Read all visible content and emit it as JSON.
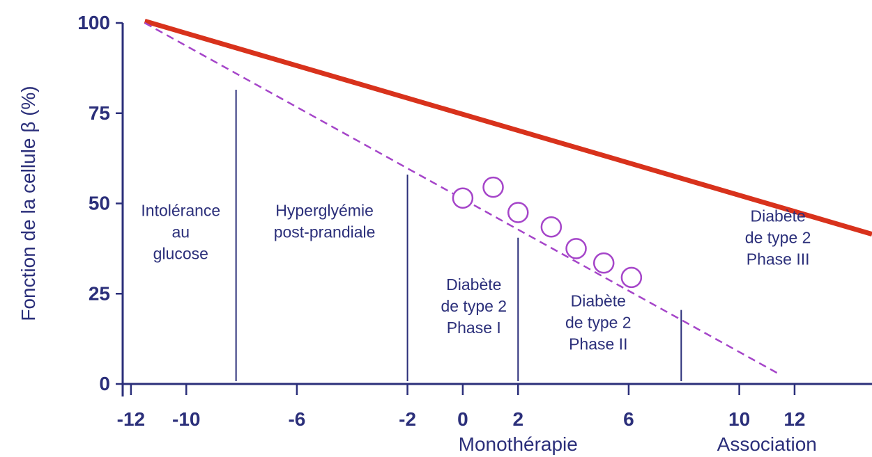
{
  "chart_data": {
    "type": "line",
    "ylabel": "Fonction de la cellule β (%)",
    "xlim": [
      -12.3,
      14.8
    ],
    "ylim": [
      0,
      100
    ],
    "x_ticks": [
      {
        "value": -12,
        "label": "-12"
      },
      {
        "value": -10,
        "label": "-10"
      },
      {
        "value": -6,
        "label": "-6"
      },
      {
        "value": -2,
        "label": "-2"
      },
      {
        "value": 0,
        "label": "0"
      },
      {
        "value": 2,
        "label": "2"
      },
      {
        "value": 6,
        "label": "6"
      },
      {
        "value": 10,
        "label": "10"
      },
      {
        "value": 12,
        "label": "12"
      }
    ],
    "y_ticks": [
      {
        "value": 0,
        "label": "0"
      },
      {
        "value": 25,
        "label": "25"
      },
      {
        "value": 50,
        "label": "50"
      },
      {
        "value": 75,
        "label": "75"
      },
      {
        "value": 100,
        "label": "100"
      }
    ],
    "x_sublabels": [
      {
        "text": "Monothérapie",
        "x": 2
      },
      {
        "text": "Association",
        "x": 11
      }
    ],
    "series": [
      {
        "style": "solid",
        "color": "#d8321c",
        "x": [
          -11.5,
          14.8
        ],
        "y": [
          100.5,
          41.5
        ]
      },
      {
        "style": "dashed",
        "color": "#a545c9",
        "x": [
          -11.5,
          11.5
        ],
        "y": [
          100,
          2.5
        ]
      },
      {
        "style": "markers",
        "color": "#a545c9",
        "x": [
          0,
          1.1,
          2,
          3.2,
          4.1,
          5.1,
          6.1
        ],
        "y": [
          51.5,
          54.5,
          47.5,
          43.5,
          37.5,
          33.5,
          29.5
        ]
      }
    ],
    "dividers": [
      {
        "x": -8.2,
        "y_top": 81.5
      },
      {
        "x": -2,
        "y_top": 58
      },
      {
        "x": 2,
        "y_top": 40.5
      },
      {
        "x": 7.9,
        "y_top": 20.5
      }
    ],
    "regions": [
      {
        "lines": [
          "Intolérance",
          "au",
          "glucose"
        ],
        "x": -10.2,
        "y": 46.5
      },
      {
        "lines": [
          "Hyperglyémie",
          "post-prandiale"
        ],
        "x": -5.0,
        "y": 46.5
      },
      {
        "lines": [
          "Diabète",
          "de type 2",
          "Phase I"
        ],
        "x": 0.4,
        "y": 26.0
      },
      {
        "lines": [
          "Diabète",
          "de type 2",
          "Phase II"
        ],
        "x": 4.9,
        "y": 21.5
      },
      {
        "lines": [
          "Diabète",
          "de type 2",
          "Phase III"
        ],
        "x": 11.4,
        "y": 45.0
      }
    ]
  }
}
